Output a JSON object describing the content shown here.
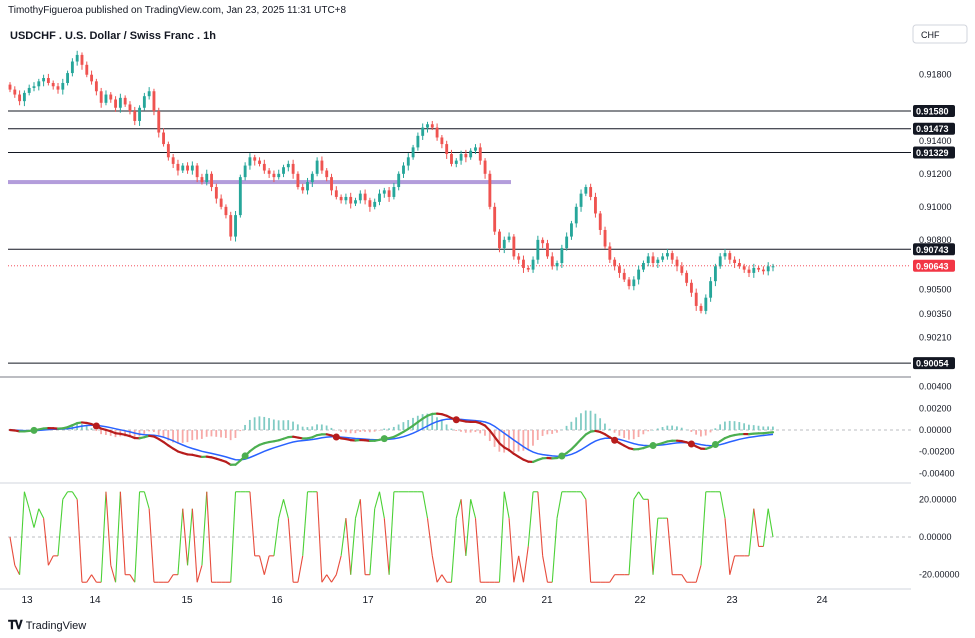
{
  "header": {
    "publisher": "TimothyFigueroa published on TradingView.com, Jan 23, 2025 11:31 UTC+8"
  },
  "footer": {
    "brand": "TradingView",
    "logo": "tradingview-logo"
  },
  "chart_data": {
    "type": "candlestick",
    "title": "USDCHF . U.S. Dollar / Swiss Franc . 1h",
    "currency": "CHF",
    "price_axis": {
      "ticks": [
        "0.91800",
        "0.91400",
        "0.91200",
        "0.91000",
        "0.90800",
        "0.90500",
        "0.90350",
        "0.90210"
      ],
      "ylim": [
        0.9,
        0.9198
      ]
    },
    "horizontal_levels": [
      {
        "value": 0.9158,
        "label": "0.91580"
      },
      {
        "value": 0.91473,
        "label": "0.91473"
      },
      {
        "value": 0.91329,
        "label": "0.91329"
      },
      {
        "value": 0.90743,
        "label": "0.90743"
      },
      {
        "value": 0.90054,
        "label": "0.90054"
      }
    ],
    "current_price": {
      "value": 0.90643,
      "label": "0.90643",
      "color": "#f23645"
    },
    "highlight_zone": {
      "value": 0.9115,
      "color": "#b39ddb"
    },
    "x_axis": {
      "labels": [
        "13",
        "14",
        "15",
        "16",
        "17",
        "20",
        "21",
        "22",
        "23",
        "24"
      ]
    },
    "candles_close": [
      0.9171,
      0.9168,
      0.9164,
      0.9169,
      0.9172,
      0.9173,
      0.9176,
      0.9178,
      0.9175,
      0.9173,
      0.9171,
      0.9175,
      0.9181,
      0.9188,
      0.9192,
      0.9186,
      0.918,
      0.9176,
      0.917,
      0.9163,
      0.9168,
      0.9165,
      0.916,
      0.9166,
      0.9162,
      0.9158,
      0.9152,
      0.916,
      0.9167,
      0.917,
      0.9158,
      0.9145,
      0.9138,
      0.913,
      0.9126,
      0.9122,
      0.9125,
      0.9122,
      0.9125,
      0.9118,
      0.9115,
      0.912,
      0.9112,
      0.9105,
      0.91,
      0.9095,
      0.9082,
      0.9095,
      0.9118,
      0.9125,
      0.913,
      0.9128,
      0.9126,
      0.9122,
      0.912,
      0.9118,
      0.912,
      0.9124,
      0.9126,
      0.912,
      0.9112,
      0.911,
      0.9115,
      0.912,
      0.9128,
      0.9122,
      0.9118,
      0.911,
      0.9106,
      0.9104,
      0.9106,
      0.9102,
      0.9104,
      0.9108,
      0.9104,
      0.91,
      0.9103,
      0.9108,
      0.911,
      0.9106,
      0.9112,
      0.912,
      0.9125,
      0.913,
      0.9136,
      0.9143,
      0.9148,
      0.915,
      0.9148,
      0.9142,
      0.9138,
      0.9132,
      0.9126,
      0.9128,
      0.9132,
      0.913,
      0.9134,
      0.9136,
      0.9128,
      0.912,
      0.91,
      0.9085,
      0.9075,
      0.908,
      0.9082,
      0.907,
      0.9068,
      0.9063,
      0.9062,
      0.9068,
      0.908,
      0.9078,
      0.907,
      0.9064,
      0.9066,
      0.9075,
      0.9082,
      0.909,
      0.91,
      0.9108,
      0.9112,
      0.9106,
      0.9096,
      0.9086,
      0.9076,
      0.9068,
      0.9064,
      0.906,
      0.9056,
      0.9052,
      0.9056,
      0.9062,
      0.9066,
      0.907,
      0.9066,
      0.9068,
      0.907,
      0.9072,
      0.9068,
      0.9064,
      0.906,
      0.9054,
      0.9048,
      0.904,
      0.9037,
      0.9045,
      0.9055,
      0.9064,
      0.907,
      0.9072,
      0.9068,
      0.9066,
      0.9064,
      0.9062,
      0.906,
      0.9063,
      0.9062,
      0.9061,
      0.9064,
      0.9064
    ],
    "macd": {
      "yticks": [
        "0.00400",
        "0.00200",
        "0.00000",
        "-0.00200",
        "-0.00400"
      ],
      "ylim": [
        -0.0046,
        0.0046
      ]
    },
    "oscillator": {
      "yticks": [
        "20.00000",
        "0.00000",
        "-20.00000"
      ],
      "ylim": [
        -26,
        26
      ]
    },
    "colors": {
      "up": "#26a69a",
      "down": "#ef5350",
      "macd_fast_up": "#4caf50",
      "macd_fast_down": "#b71c1c",
      "macd_slow": "#2962ff",
      "osc_up": "#4cd137",
      "osc_down": "#e74c3c"
    }
  }
}
